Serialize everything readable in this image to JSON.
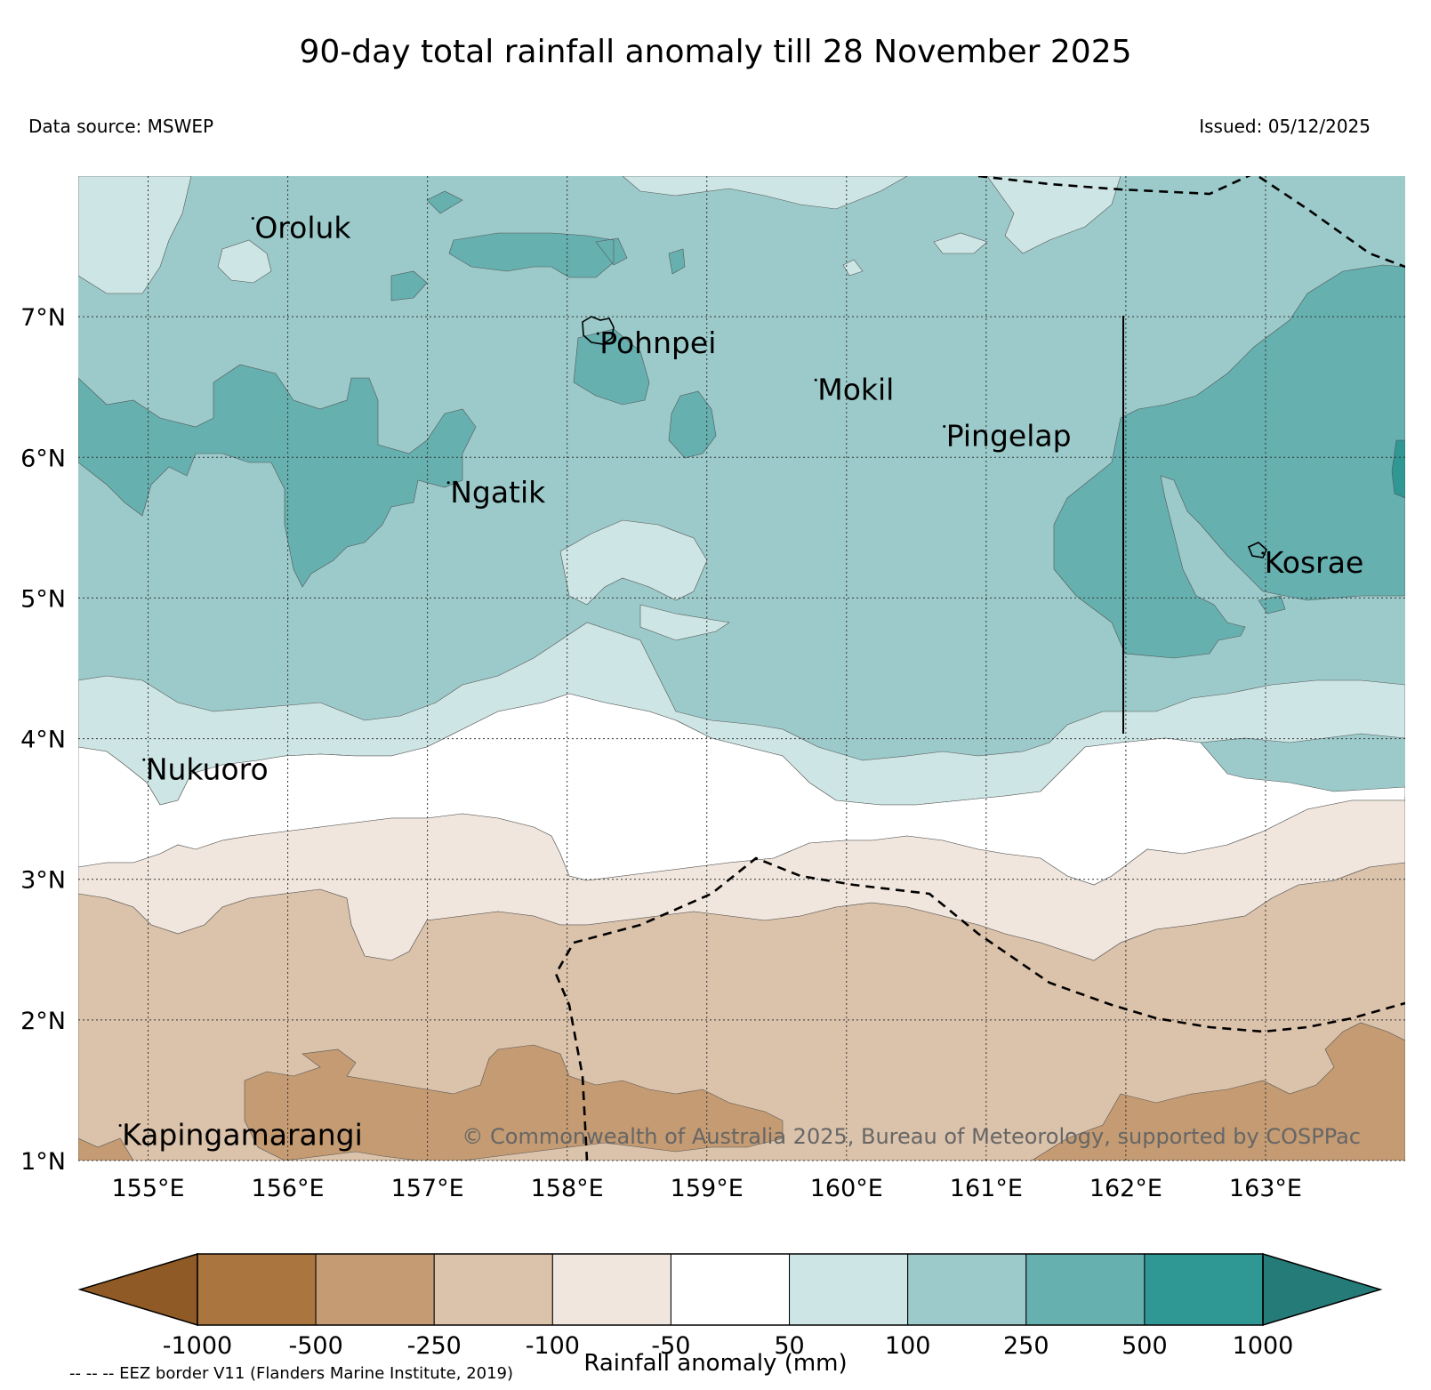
{
  "header": {
    "title": "90-day total rainfall anomaly till 28 November 2025",
    "data_source": "Data source: MSWEP",
    "issued": "Issued: 05/12/2025"
  },
  "map": {
    "lon_range": [
      154.5,
      164.0
    ],
    "lat_range": [
      1.0,
      8.0
    ],
    "lon_ticks": [
      "155°E",
      "156°E",
      "157°E",
      "158°E",
      "159°E",
      "160°E",
      "161°E",
      "162°E",
      "163°E"
    ],
    "lat_ticks": [
      "1°N",
      "2°N",
      "3°N",
      "4°N",
      "5°N",
      "6°N",
      "7°N"
    ],
    "islands": [
      {
        "name": "Oroluk",
        "lon": 155.75,
        "lat": 7.7
      },
      {
        "name": "Pohnpei",
        "lon": 158.22,
        "lat": 6.88
      },
      {
        "name": "Mokil",
        "lon": 159.78,
        "lat": 6.55
      },
      {
        "name": "Pingelap",
        "lon": 160.7,
        "lat": 6.22
      },
      {
        "name": "Ngatik",
        "lon": 157.15,
        "lat": 5.82
      },
      {
        "name": "Kosrae",
        "lon": 162.98,
        "lat": 5.32
      },
      {
        "name": "Nukuoro",
        "lon": 154.97,
        "lat": 3.85
      },
      {
        "name": "Kapingamarangi",
        "lon": 154.8,
        "lat": 1.25
      }
    ],
    "copyright": "© Commonwealth of Australia 2025, Bureau of Meteorology, supported by COSPPac"
  },
  "legend": {
    "label": "Rainfall anomaly (mm)",
    "ticks": [
      "-1000",
      "-500",
      "-250",
      "-100",
      "-50",
      "50",
      "100",
      "250",
      "500",
      "1000"
    ],
    "colors": [
      "#8f5a25",
      "#aa753f",
      "#c49b72",
      "#dbc2aa",
      "#f0e6dd",
      "#ffffff",
      "#cde5e4",
      "#9ccaca",
      "#66b0b0",
      "#2f9794",
      "#257b78"
    ],
    "eez_note": "-- -- -- EEZ border V11 (Flanders Marine Institute, 2019)"
  }
}
